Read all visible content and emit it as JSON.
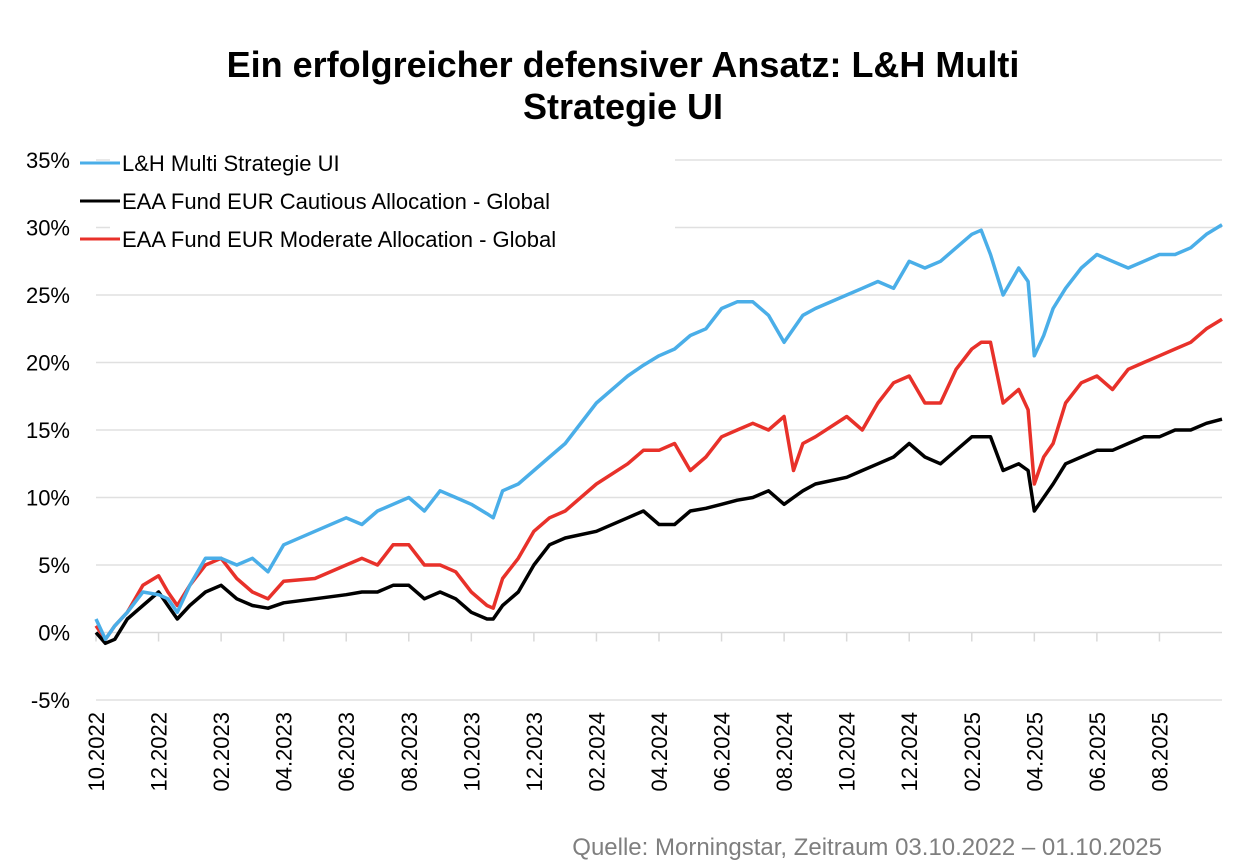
{
  "chart_data": {
    "type": "line",
    "title": [
      "Ein erfolgreicher defensiver Ansatz: L&H Multi",
      "Strategie UI"
    ],
    "xlabel": "",
    "ylabel": "",
    "ylim": [
      -5,
      35
    ],
    "yticks": [
      "35%",
      "30%",
      "25%",
      "20%",
      "15%",
      "10%",
      "5%",
      "0%",
      "-5%"
    ],
    "ytick_values": [
      35,
      30,
      25,
      20,
      15,
      10,
      5,
      0,
      -5
    ],
    "x_unit": "months since 10.2022",
    "xlim": [
      0,
      36
    ],
    "xticks": [
      "10.2022",
      "12.2022",
      "02.2023",
      "04.2023",
      "06.2023",
      "08.2023",
      "10.2023",
      "12.2023",
      "02.2024",
      "04.2024",
      "06.2024",
      "08.2024",
      "10.2024",
      "12.2024",
      "02.2025",
      "04.2025",
      "06.2025",
      "08.2025"
    ],
    "xtick_values": [
      0,
      2,
      4,
      6,
      8,
      10,
      12,
      14,
      16,
      18,
      20,
      22,
      24,
      26,
      28,
      30,
      32,
      34
    ],
    "grid": true,
    "legend_position": "top-left",
    "source": "Quelle: Morningstar, Zeitraum 03.10.2022 – 01.10.2025",
    "x": [
      0,
      0.3,
      0.6,
      1,
      1.5,
      2,
      2.3,
      2.6,
      3,
      3.5,
      4,
      4.5,
      5,
      5.5,
      6,
      7,
      8,
      8.5,
      9,
      9.5,
      10,
      10.5,
      11,
      11.5,
      12,
      12.5,
      12.7,
      13,
      13.5,
      14,
      14.5,
      15,
      16,
      17,
      17.5,
      18,
      18.5,
      19,
      19.5,
      20,
      20.5,
      21,
      21.5,
      22,
      22.3,
      22.6,
      23,
      24,
      24.5,
      25,
      25.5,
      26,
      26.5,
      27,
      27.5,
      28,
      28.3,
      28.6,
      29,
      29.5,
      29.8,
      30,
      30.3,
      30.6,
      31,
      31.5,
      32,
      32.5,
      33,
      33.5,
      34,
      34.5,
      35,
      35.5,
      36
    ],
    "series": [
      {
        "name": "L&H Multi Strategie UI",
        "color": "#4aaee8",
        "values": [
          1,
          -0.5,
          0.5,
          1.5,
          3,
          2.8,
          2.5,
          1.5,
          3.5,
          5.5,
          5.5,
          5,
          5.5,
          4.5,
          6.5,
          7.5,
          8.5,
          8,
          9,
          9.5,
          10,
          9,
          10.5,
          10,
          9.5,
          8.8,
          8.5,
          10.5,
          11,
          12,
          13,
          14,
          17,
          19,
          19.8,
          20.5,
          21,
          22,
          22.5,
          24,
          24.5,
          24.5,
          23.5,
          21.5,
          22.5,
          23.5,
          24,
          25,
          25.5,
          26,
          25.5,
          27.5,
          27,
          27.5,
          28.5,
          29.5,
          29.8,
          28,
          25,
          27,
          26,
          20.5,
          22,
          24,
          25.5,
          27,
          28,
          27.5,
          27,
          27.5,
          28,
          28,
          28.5,
          29.5,
          30.2
        ]
      },
      {
        "name": "EAA Fund EUR Cautious Allocation - Global",
        "color": "#000000",
        "values": [
          0,
          -0.8,
          -0.5,
          1,
          2,
          3,
          2,
          1,
          2,
          3,
          3.5,
          2.5,
          2,
          1.8,
          2.2,
          2.5,
          2.8,
          3,
          3,
          3.5,
          3.5,
          2.5,
          3,
          2.5,
          1.5,
          1,
          1,
          2,
          3,
          5,
          6.5,
          7,
          7.5,
          8.5,
          9,
          8,
          8,
          9,
          9.2,
          9.5,
          9.8,
          10,
          10.5,
          9.5,
          10,
          10.5,
          11,
          11.5,
          12,
          12.5,
          13,
          14,
          13,
          12.5,
          13.5,
          14.5,
          14.5,
          14.5,
          12,
          12.5,
          12,
          9,
          10,
          11,
          12.5,
          13,
          13.5,
          13.5,
          14,
          14.5,
          14.5,
          15,
          15,
          15.5,
          15.8
        ]
      },
      {
        "name": "EAA Fund EUR Moderate Allocation - Global",
        "color": "#e8312a",
        "values": [
          0.5,
          -0.5,
          0.5,
          1.5,
          3.5,
          4.2,
          3,
          2,
          3.5,
          5,
          5.5,
          4,
          3,
          2.5,
          3.8,
          4,
          5,
          5.5,
          5,
          6.5,
          6.5,
          5,
          5,
          4.5,
          3,
          2,
          1.8,
          4,
          5.5,
          7.5,
          8.5,
          9,
          11,
          12.5,
          13.5,
          13.5,
          14,
          12,
          13,
          14.5,
          15,
          15.5,
          15,
          16,
          12,
          14,
          14.5,
          16,
          15,
          17,
          18.5,
          19,
          17,
          17,
          19.5,
          21,
          21.5,
          21.5,
          17,
          18,
          16.5,
          11,
          13,
          14,
          17,
          18.5,
          19,
          18,
          19.5,
          20,
          20.5,
          21,
          21.5,
          22.5,
          23.2
        ]
      }
    ]
  }
}
